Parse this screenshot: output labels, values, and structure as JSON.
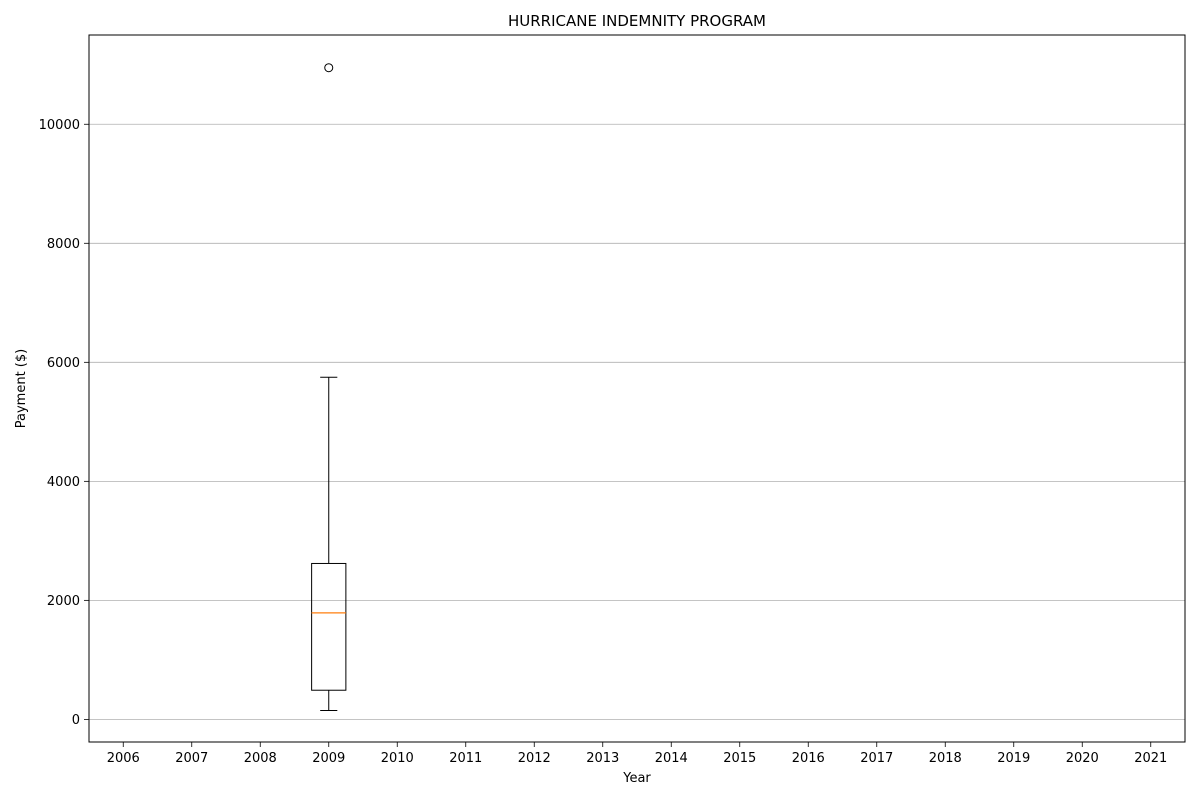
{
  "chart_data": {
    "type": "box",
    "title": "HURRICANE INDEMNITY PROGRAM",
    "xlabel": "Year",
    "ylabel": "Payment ($)",
    "categories": [
      "2006",
      "2007",
      "2008",
      "2009",
      "2010",
      "2011",
      "2012",
      "2013",
      "2014",
      "2015",
      "2016",
      "2017",
      "2018",
      "2019",
      "2020",
      "2021"
    ],
    "ylim": [
      -380,
      11500
    ],
    "yticks": [
      0,
      2000,
      4000,
      6000,
      8000,
      10000
    ],
    "grid": "horizontal",
    "boxes": [
      {
        "category": "2009",
        "whisker_low": 150,
        "q1": 490,
        "median": 1790,
        "q3": 2620,
        "whisker_high": 5750,
        "outliers": [
          10950
        ]
      }
    ],
    "colors": {
      "box": "#000000",
      "median": "#ff7f0e",
      "grid": "#b0b0b0"
    }
  }
}
